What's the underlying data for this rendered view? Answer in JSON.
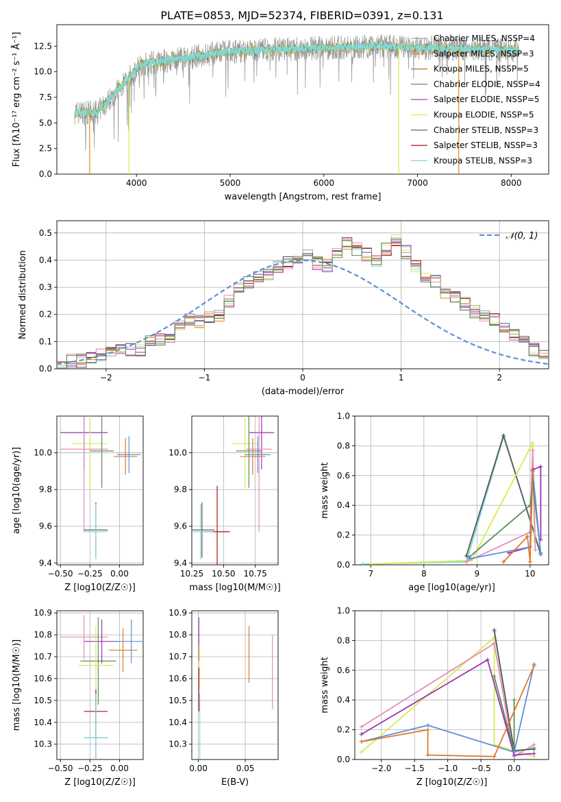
{
  "title": "PLATE=0853, MJD=52374, FIBERID=0391, z=0.131",
  "colors": {
    "Chabrier MILES": "#9b9b9b",
    "Salpeter MILES": "#e8861a",
    "Kroupa MILES": "#b0731f",
    "Chabrier ELODIE": "#5b8c5a",
    "Salpeter ELODIE": "#9b2fb5",
    "Kroupa ELODIE": "#d6ec4f",
    "Chabrier STELIB": "#555555",
    "Salpeter STELIB": "#a31515",
    "Kroupa STELIB": "#7fd8dc",
    "normal_line": "#5b8fd8",
    "pink_series": "#e88ab8",
    "blue_series": "#5b8fd8",
    "orange_series": "#e07828"
  },
  "chart_data": [
    {
      "id": "spectrum",
      "type": "line",
      "title": "PLATE=0853, MJD=52374, FIBERID=0391, z=0.131",
      "xlabel": "wavelength [Angstrom, rest frame]",
      "ylabel": "Flux [fλ10⁻¹⁷ erg cm⁻² s⁻¹ Å⁻¹]",
      "xlim": [
        3150,
        8400
      ],
      "ylim": [
        0,
        14.6
      ],
      "xticks": [
        4000,
        5000,
        6000,
        7000,
        8000
      ],
      "yticks": [
        0.0,
        2.5,
        5.0,
        7.5,
        10.0,
        12.5
      ],
      "ytick_labels": [
        "0.0",
        "2.5",
        "5.0",
        "7.5",
        "10.0",
        "12.5"
      ],
      "grid": false,
      "legend_position": "right",
      "legend": [
        {
          "label": "Chabrier MILES, NSSP=4",
          "color_key": "Chabrier MILES"
        },
        {
          "label": "Salpeter MILES, NSSP=3",
          "color_key": "Salpeter MILES"
        },
        {
          "label": "Kroupa MILES, NSSP=5",
          "color_key": "Kroupa MILES"
        },
        {
          "label": "Chabrier ELODIE, NSSP=4",
          "color_key": "Chabrier ELODIE"
        },
        {
          "label": "Salpeter ELODIE, NSSP=5",
          "color_key": "Salpeter ELODIE"
        },
        {
          "label": "Kroupa ELODIE, NSSP=5",
          "color_key": "Kroupa ELODIE"
        },
        {
          "label": "Chabrier STELIB, NSSP=3",
          "color_key": "Chabrier STELIB"
        },
        {
          "label": "Salpeter STELIB, NSSP=3",
          "color_key": "Salpeter STELIB"
        },
        {
          "label": "Kroupa STELIB, NSSP=3",
          "color_key": "Kroupa STELIB"
        }
      ],
      "data_series": {
        "name": "data",
        "x_range": [
          3340,
          8090
        ],
        "color_key": "Chabrier MILES"
      },
      "model_series": {
        "name": "model",
        "x_range": [
          3340,
          8090
        ],
        "color_key": "Kroupa STELIB"
      },
      "model_drops": [
        {
          "x": 3500,
          "color_key": "Salpeter MILES"
        },
        {
          "x": 3920,
          "color_key": "Kroupa ELODIE"
        },
        {
          "x": 6800,
          "color_key": "Kroupa ELODIE"
        },
        {
          "x": 7440,
          "color_key": "Salpeter MILES"
        }
      ]
    },
    {
      "id": "residuals",
      "type": "area",
      "xlabel": "(data-model)/error",
      "ylabel": "Normed distribution",
      "xlim": [
        -2.5,
        2.5
      ],
      "ylim": [
        0,
        0.545
      ],
      "xticks": [
        -2,
        -1,
        0,
        1,
        2
      ],
      "xtick_labels": [
        "−2",
        "−1",
        "0",
        "1",
        "2"
      ],
      "yticks": [
        0.0,
        0.1,
        0.2,
        0.3,
        0.4,
        0.5
      ],
      "ytick_labels": [
        "0.0",
        "0.1",
        "0.2",
        "0.3",
        "0.4",
        "0.5"
      ],
      "grid": true,
      "legend_position": "top-right",
      "legend": [
        {
          "label": "𝒩(0, 1)",
          "color_key": "normal_line"
        }
      ],
      "bin_width": 0.1,
      "x_start": -2.5,
      "hist_values": [
        0.02,
        0.03,
        0.03,
        0.04,
        0.05,
        0.06,
        0.08,
        0.07,
        0.07,
        0.1,
        0.11,
        0.12,
        0.16,
        0.18,
        0.17,
        0.19,
        0.2,
        0.25,
        0.3,
        0.32,
        0.34,
        0.35,
        0.38,
        0.39,
        0.41,
        0.42,
        0.39,
        0.38,
        0.43,
        0.46,
        0.44,
        0.42,
        0.4,
        0.44,
        0.47,
        0.43,
        0.38,
        0.34,
        0.32,
        0.28,
        0.27,
        0.24,
        0.21,
        0.2,
        0.18,
        0.15,
        0.12,
        0.1,
        0.07,
        0.05
      ],
      "hist_colors": [
        "Salpeter MILES",
        "Kroupa STELIB",
        "Salpeter STELIB",
        "Kroupa ELODIE",
        "Salpeter ELODIE",
        "Chabrier MILES",
        "Chabrier STELIB",
        "pink_series",
        "Chabrier ELODIE"
      ]
    },
    {
      "id": "age_vs_Z",
      "type": "scatter",
      "xlabel": "Z [log10(Z/Z☉)]",
      "ylabel": "age  [log10(age/yr)]",
      "xlim": [
        -0.53,
        0.2
      ],
      "ylim": [
        9.39,
        10.2
      ],
      "xticks": [
        -0.5,
        -0.25,
        0.0
      ],
      "xtick_labels": [
        "−0.50",
        "−0.25",
        "0.00"
      ],
      "yticks": [
        9.4,
        9.6,
        9.8,
        10.0
      ],
      "ytick_labels": [
        "9.4",
        "9.6",
        "9.8",
        "10.0"
      ],
      "grid": true,
      "points": [
        {
          "x": -0.3,
          "y": 10.11,
          "xerr": 0.2,
          "yerr": 0.2,
          "color_key": "Salpeter ELODIE"
        },
        {
          "x": -0.25,
          "y": 10.05,
          "xerr": 0.15,
          "yerr": 0.25,
          "color_key": "Kroupa ELODIE"
        },
        {
          "x": -0.3,
          "y": 10.02,
          "xerr": 0.2,
          "yerr": 0.45,
          "color_key": "pink_series"
        },
        {
          "x": -0.15,
          "y": 10.01,
          "xerr": 0.1,
          "yerr": 0.2,
          "color_key": "Chabrier ELODIE"
        },
        {
          "x": 0.08,
          "y": 9.99,
          "xerr": 0.1,
          "yerr": 0.1,
          "color_key": "blue_series"
        },
        {
          "x": 0.05,
          "y": 9.98,
          "xerr": 0.1,
          "yerr": 0.1,
          "color_key": "orange_series"
        },
        {
          "x": -0.2,
          "y": 9.58,
          "xerr": 0.1,
          "yerr": 0.15,
          "color_key": "Chabrier STELIB"
        },
        {
          "x": -0.2,
          "y": 9.57,
          "xerr": 0.1,
          "yerr": 0.15,
          "color_key": "Kroupa STELIB"
        }
      ]
    },
    {
      "id": "age_vs_mass",
      "type": "scatter",
      "xlabel": "mass [log10(M/M☉)]",
      "ylabel": "",
      "xlim": [
        10.25,
        10.93
      ],
      "ylim": [
        9.39,
        10.2
      ],
      "xticks": [
        10.25,
        10.5,
        10.75
      ],
      "xtick_labels": [
        "10.25",
        "10.50",
        "10.75"
      ],
      "yticks": [
        9.4,
        9.6,
        9.8,
        10.0
      ],
      "ytick_labels": [
        "9.4",
        "9.6",
        "9.8",
        "10.0"
      ],
      "grid": true,
      "points": [
        {
          "x": 10.8,
          "y": 10.11,
          "xerr": 0.1,
          "yerr": 0.2,
          "color_key": "Salpeter ELODIE"
        },
        {
          "x": 10.67,
          "y": 10.05,
          "xerr": 0.1,
          "yerr": 0.25,
          "color_key": "Kroupa ELODIE"
        },
        {
          "x": 10.78,
          "y": 10.02,
          "xerr": 0.1,
          "yerr": 0.45,
          "color_key": "pink_series"
        },
        {
          "x": 10.7,
          "y": 10.01,
          "xerr": 0.1,
          "yerr": 0.2,
          "color_key": "Chabrier ELODIE"
        },
        {
          "x": 10.77,
          "y": 9.99,
          "xerr": 0.1,
          "yerr": 0.1,
          "color_key": "blue_series"
        },
        {
          "x": 10.73,
          "y": 9.98,
          "xerr": 0.1,
          "yerr": 0.1,
          "color_key": "orange_series"
        },
        {
          "x": 10.45,
          "y": 9.57,
          "xerr": 0.1,
          "yerr": 0.25,
          "color_key": "Salpeter STELIB"
        },
        {
          "x": 10.33,
          "y": 9.58,
          "xerr": 0.1,
          "yerr": 0.15,
          "color_key": "Chabrier STELIB"
        },
        {
          "x": 10.32,
          "y": 9.57,
          "xerr": 0.1,
          "yerr": 0.15,
          "color_key": "Kroupa STELIB"
        }
      ]
    },
    {
      "id": "weight_vs_age",
      "type": "line",
      "xlabel": "age  [log10(age/yr)]",
      "ylabel": "mass weight",
      "xlim": [
        6.7,
        10.35
      ],
      "ylim": [
        0,
        1.0
      ],
      "xticks": [
        7,
        8,
        9,
        10
      ],
      "xtick_labels": [
        "7",
        "8",
        "9",
        "10"
      ],
      "yticks": [
        0.0,
        0.2,
        0.4,
        0.6,
        0.8,
        1.0
      ],
      "ytick_labels": [
        "0.0",
        "0.2",
        "0.4",
        "0.6",
        "0.8",
        "1.0"
      ],
      "grid": true,
      "series": [
        {
          "color_key": "Kroupa STELIB",
          "x": [
            6.85,
            8.8,
            9.5,
            10.2
          ],
          "y": [
            0.005,
            0.02,
            0.86,
            0.08
          ]
        },
        {
          "color_key": "Chabrier STELIB",
          "x": [
            8.8,
            9.5,
            10.2
          ],
          "y": [
            0.06,
            0.87,
            0.07
          ]
        },
        {
          "color_key": "Kroupa ELODIE",
          "x": [
            7.0,
            8.9,
            10.05,
            10.08
          ],
          "y": [
            0.005,
            0.03,
            0.82,
            0.16
          ]
        },
        {
          "color_key": "pink_series",
          "x": [
            8.8,
            10.0,
            10.05,
            10.1
          ],
          "y": [
            0.02,
            0.22,
            0.77,
            0.1
          ]
        },
        {
          "color_key": "Chabrier ELODIE",
          "x": [
            8.85,
            10.0,
            10.05,
            10.2
          ],
          "y": [
            0.05,
            0.4,
            0.55,
            0.08
          ]
        },
        {
          "color_key": "Salpeter ELODIE",
          "x": [
            9.6,
            10.0,
            10.05,
            10.2,
            10.2
          ],
          "y": [
            0.08,
            0.12,
            0.64,
            0.66,
            0.17
          ]
        },
        {
          "color_key": "blue_series",
          "x": [
            8.85,
            10.0,
            10.05,
            10.2
          ],
          "y": [
            0.04,
            0.12,
            0.63,
            0.07
          ]
        },
        {
          "color_key": "orange_series",
          "x": [
            9.5,
            9.95,
            10.0,
            10.05
          ],
          "y": [
            0.02,
            0.19,
            0.02,
            0.63
          ]
        }
      ]
    },
    {
      "id": "mass_vs_Z",
      "type": "scatter",
      "xlabel": "Z [log10(Z/Z☉)]",
      "ylabel": "mass [log10(M/M☉)]",
      "xlim": [
        -0.53,
        0.2
      ],
      "ylim": [
        10.23,
        10.91
      ],
      "xticks": [
        -0.5,
        -0.25,
        0.0
      ],
      "xtick_labels": [
        "−0.50",
        "−0.25",
        "0.00"
      ],
      "yticks": [
        10.3,
        10.4,
        10.5,
        10.6,
        10.7,
        10.8,
        10.9
      ],
      "ytick_labels": [
        "10.3",
        "10.4",
        "10.5",
        "10.6",
        "10.7",
        "10.8",
        "10.9"
      ],
      "grid": true,
      "points": [
        {
          "x": -0.3,
          "y": 10.79,
          "xerr": 0.2,
          "yerr": 0.1,
          "color_key": "pink_series"
        },
        {
          "x": -0.15,
          "y": 10.77,
          "xerr": 0.15,
          "yerr": 0.1,
          "color_key": "Salpeter ELODIE"
        },
        {
          "x": 0.1,
          "y": 10.77,
          "xerr": 0.15,
          "yerr": 0.1,
          "color_key": "blue_series"
        },
        {
          "x": 0.03,
          "y": 10.73,
          "xerr": 0.12,
          "yerr": 0.1,
          "color_key": "orange_series"
        },
        {
          "x": -0.18,
          "y": 10.68,
          "xerr": 0.15,
          "yerr": 0.2,
          "color_key": "Chabrier ELODIE"
        },
        {
          "x": -0.2,
          "y": 10.66,
          "xerr": 0.15,
          "yerr": 0.18,
          "color_key": "Kroupa ELODIE"
        },
        {
          "x": -0.2,
          "y": 10.45,
          "xerr": 0.1,
          "yerr": 0.1,
          "color_key": "Salpeter STELIB"
        },
        {
          "x": -0.2,
          "y": 10.33,
          "xerr": 0.1,
          "yerr": 0.2,
          "color_key": "Chabrier STELIB"
        },
        {
          "x": -0.2,
          "y": 10.33,
          "xerr": 0.1,
          "yerr": 0.2,
          "color_key": "Kroupa STELIB"
        }
      ]
    },
    {
      "id": "mass_vs_EBV",
      "type": "scatter",
      "xlabel": "E(B-V)",
      "ylabel": "",
      "xlim": [
        -0.007,
        0.085
      ],
      "ylim": [
        10.23,
        10.91
      ],
      "xticks": [
        0.0,
        0.05
      ],
      "xtick_labels": [
        "0.00",
        "0.05"
      ],
      "yticks": [
        10.3,
        10.4,
        10.5,
        10.6,
        10.7,
        10.8,
        10.9
      ],
      "ytick_labels": [
        "10.3",
        "10.4",
        "10.5",
        "10.6",
        "10.7",
        "10.8",
        "10.9"
      ],
      "grid": true,
      "points": [
        {
          "x": 0.0005,
          "y": 10.78,
          "yerr": 0.1,
          "color_key": "Salpeter ELODIE"
        },
        {
          "x": 0.001,
          "y": 10.66,
          "yerr": 0.1,
          "color_key": "Kroupa ELODIE"
        },
        {
          "x": 0.0005,
          "y": 10.55,
          "yerr": 0.1,
          "color_key": "Salpeter STELIB"
        },
        {
          "x": 0.0015,
          "y": 10.33,
          "yerr": 0.2,
          "color_key": "Kroupa STELIB"
        },
        {
          "x": 0.054,
          "y": 10.71,
          "yerr": 0.13,
          "color_key": "orange_series"
        },
        {
          "x": 0.079,
          "y": 10.63,
          "yerr": 0.17,
          "color_key": "pink_series"
        }
      ]
    },
    {
      "id": "weight_vs_Z",
      "type": "line",
      "xlabel": "Z [log10(Z/Z☉)]",
      "ylabel": "mass weight",
      "xlim": [
        -2.4,
        0.52
      ],
      "ylim": [
        0,
        1.0
      ],
      "xticks": [
        -2.0,
        -1.5,
        -1.0,
        -0.5,
        0.0
      ],
      "xtick_labels": [
        "−2.0",
        "−1.5",
        "−1.0",
        "−0.5",
        "0.0"
      ],
      "yticks": [
        0.0,
        0.2,
        0.4,
        0.6,
        0.8,
        1.0
      ],
      "ytick_labels": [
        "0.0",
        "0.2",
        "0.4",
        "0.6",
        "0.8",
        "1.0"
      ],
      "grid": true,
      "series": [
        {
          "color_key": "Kroupa ELODIE",
          "x": [
            -2.3,
            -0.3,
            -0.3,
            0.3
          ],
          "y": [
            0.05,
            0.82,
            0.1,
            0.02
          ]
        },
        {
          "color_key": "pink_series",
          "x": [
            -2.3,
            -0.3,
            0.0,
            0.3
          ],
          "y": [
            0.22,
            0.78,
            0.02,
            0.1
          ]
        },
        {
          "color_key": "Salpeter ELODIE",
          "x": [
            -2.3,
            -0.4,
            0.0,
            0.3
          ],
          "y": [
            0.17,
            0.67,
            0.03,
            0.04
          ]
        },
        {
          "color_key": "Kroupa STELIB",
          "x": [
            -0.3,
            0.0,
            0.3
          ],
          "y": [
            0.86,
            0.05,
            0.08
          ]
        },
        {
          "color_key": "Chabrier STELIB",
          "x": [
            -0.3,
            0.0,
            0.3
          ],
          "y": [
            0.87,
            0.06,
            0.07
          ]
        },
        {
          "color_key": "Chabrier ELODIE",
          "x": [
            -0.3,
            0.0,
            0.0
          ],
          "y": [
            0.56,
            0.05,
            0.4
          ]
        },
        {
          "color_key": "blue_series",
          "x": [
            -2.3,
            -1.3,
            0.0,
            0.3
          ],
          "y": [
            0.12,
            0.23,
            0.05,
            0.64
          ]
        },
        {
          "color_key": "orange_series",
          "x": [
            -2.3,
            -1.3,
            -1.3,
            -0.3,
            0.3
          ],
          "y": [
            0.12,
            0.2,
            0.03,
            0.02,
            0.63
          ]
        }
      ]
    }
  ]
}
